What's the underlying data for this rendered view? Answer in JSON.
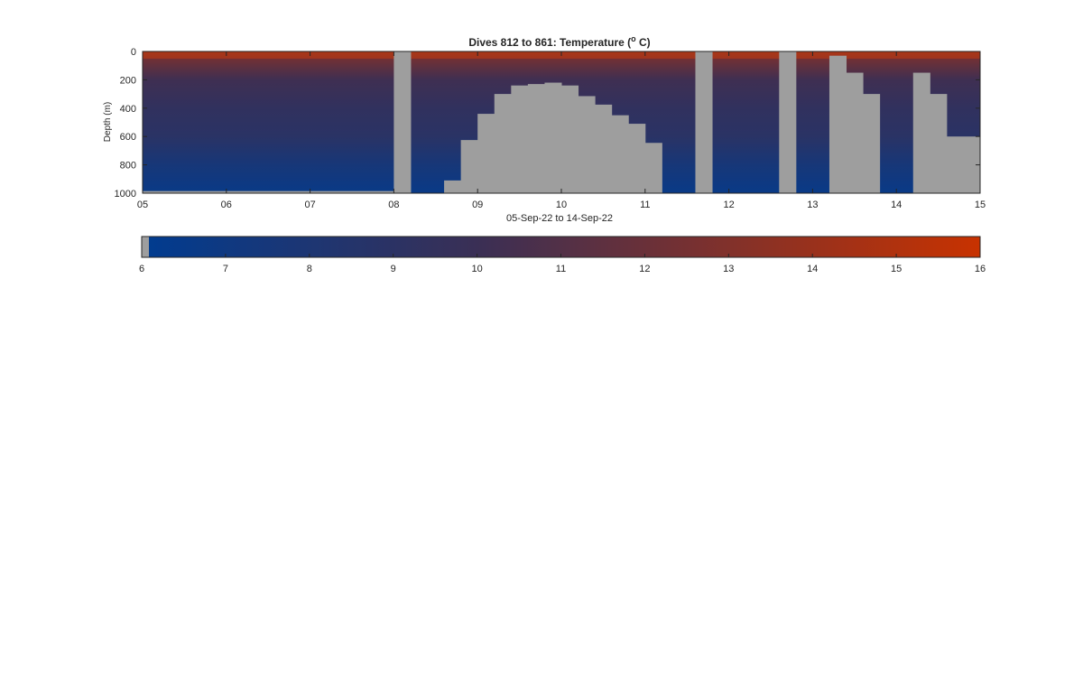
{
  "chart_data": {
    "type": "heatmap",
    "title_prefix": "Dives 812 to 861: Temperature (",
    "title_degree": "o",
    "title_suffix": " C)",
    "xlabel": "05-Sep-22 to 14-Sep-22",
    "ylabel": "Depth (m)",
    "x_ticks": [
      "05",
      "06",
      "07",
      "08",
      "09",
      "10",
      "11",
      "12",
      "13",
      "14",
      "15"
    ],
    "xlim": [
      5,
      15
    ],
    "y_ticks": [
      "0",
      "200",
      "400",
      "600",
      "800",
      "1000"
    ],
    "ylim": [
      0,
      1000
    ],
    "y_reversed": true,
    "color_scale": {
      "min": 6,
      "max": 16,
      "ticks": [
        "6",
        "7",
        "8",
        "9",
        "10",
        "11",
        "12",
        "13",
        "14",
        "15",
        "16"
      ],
      "low_color": "#003c90",
      "mid_color": "#3a2f55",
      "high_color": "#c83200",
      "nodata_color": "#9e9e9e"
    },
    "temperature_profile": [
      {
        "depth": 0,
        "temp": 13.8
      },
      {
        "depth": 60,
        "temp": 12.2
      },
      {
        "depth": 200,
        "temp": 10.2
      },
      {
        "depth": 400,
        "temp": 9.4
      },
      {
        "depth": 600,
        "temp": 8.9
      },
      {
        "depth": 800,
        "temp": 7.6
      },
      {
        "depth": 1000,
        "temp": 6.6
      }
    ],
    "no_data_regions": [
      {
        "x0": 5.0,
        "x1": 8.0,
        "top": 985
      },
      {
        "x0": 8.0,
        "x1": 8.2,
        "top": 0
      },
      {
        "x0": 8.6,
        "x1": 8.8,
        "top": 910
      },
      {
        "x0": 8.8,
        "x1": 9.0,
        "top": 625
      },
      {
        "x0": 9.0,
        "x1": 9.2,
        "top": 440
      },
      {
        "x0": 9.2,
        "x1": 9.4,
        "top": 300
      },
      {
        "x0": 9.4,
        "x1": 9.6,
        "top": 240
      },
      {
        "x0": 9.6,
        "x1": 9.8,
        "top": 230
      },
      {
        "x0": 9.8,
        "x1": 10.0,
        "top": 220
      },
      {
        "x0": 10.0,
        "x1": 10.2,
        "top": 240
      },
      {
        "x0": 10.2,
        "x1": 10.4,
        "top": 315
      },
      {
        "x0": 10.4,
        "x1": 10.6,
        "top": 375
      },
      {
        "x0": 10.6,
        "x1": 10.8,
        "top": 450
      },
      {
        "x0": 10.8,
        "x1": 11.0,
        "top": 510
      },
      {
        "x0": 11.0,
        "x1": 11.2,
        "top": 645
      },
      {
        "x0": 11.6,
        "x1": 11.8,
        "top": 0
      },
      {
        "x0": 12.6,
        "x1": 12.8,
        "top": 0
      },
      {
        "x0": 13.2,
        "x1": 13.4,
        "top": 30
      },
      {
        "x0": 13.4,
        "x1": 13.6,
        "top": 150
      },
      {
        "x0": 13.6,
        "x1": 13.8,
        "top": 300
      },
      {
        "x0": 14.2,
        "x1": 14.4,
        "top": 150
      },
      {
        "x0": 14.4,
        "x1": 14.6,
        "top": 300
      },
      {
        "x0": 14.6,
        "x1": 15.0,
        "top": 600
      }
    ]
  }
}
